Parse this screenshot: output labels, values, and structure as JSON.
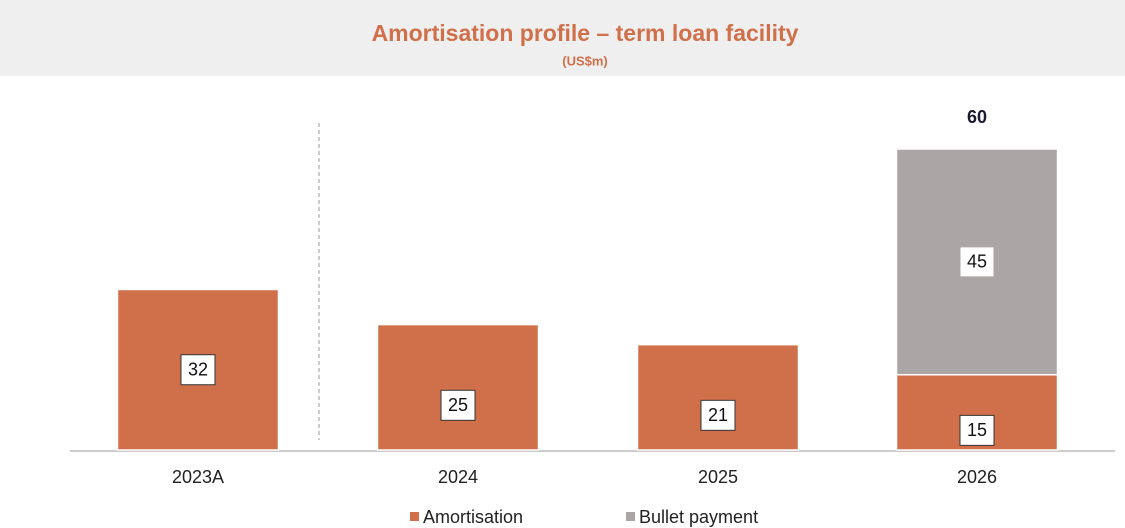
{
  "chart_data": {
    "type": "stacked_bar",
    "title": "Amortisation profile – term loan facility",
    "subtitle": "(US$m)",
    "categories": [
      "2023A",
      "2024",
      "2025",
      "2026"
    ],
    "series": [
      {
        "name": "Amortisation",
        "color": "#d0704a",
        "values": [
          32,
          25,
          21,
          15
        ]
      },
      {
        "name": "Bullet payment",
        "color": "#aba6a6",
        "values": [
          null,
          null,
          null,
          45
        ]
      }
    ],
    "totals": [
      null,
      null,
      null,
      60
    ],
    "ylim": [
      0,
      60
    ],
    "legend": "bottom"
  }
}
